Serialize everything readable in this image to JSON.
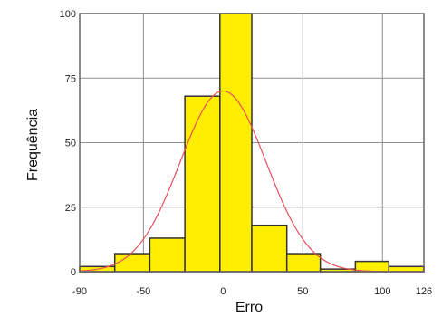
{
  "chart_data": {
    "type": "bar",
    "title": "",
    "xlabel": "Erro",
    "ylabel": "Frequência",
    "xlim": [
      -90,
      126
    ],
    "ylim": [
      0,
      100
    ],
    "x_ticks": [
      -90,
      -50,
      0,
      50,
      100,
      126
    ],
    "x_tick_labels": [
      "-90",
      "-50",
      "0",
      "50",
      "100",
      "126"
    ],
    "y_ticks": [
      0,
      25,
      50,
      75,
      100
    ],
    "y_tick_labels": [
      "0",
      "25",
      "50",
      "75",
      "100"
    ],
    "grid": true,
    "legend": "none",
    "bins": [
      {
        "x0": -90,
        "x1": -68,
        "value": 2
      },
      {
        "x0": -68,
        "x1": -46,
        "value": 7
      },
      {
        "x0": -46,
        "x1": -24,
        "value": 13
      },
      {
        "x0": -24,
        "x1": -2,
        "value": 68
      },
      {
        "x0": -2,
        "x1": 18,
        "value": 100
      },
      {
        "x0": 18,
        "x1": 40,
        "value": 18
      },
      {
        "x0": 40,
        "x1": 61,
        "value": 7
      },
      {
        "x0": 61,
        "x1": 83,
        "value": 1
      },
      {
        "x0": 83,
        "x1": 104,
        "value": 4
      },
      {
        "x0": 104,
        "x1": 126,
        "value": 2
      }
    ],
    "normal_curve": {
      "mean": 0,
      "sd": 27,
      "peak": 70
    },
    "colors": {
      "bar_fill": "#ffee00",
      "bar_edge": "#333333",
      "curve": "#e8505b",
      "grid": "#909090",
      "frame": "#666666"
    }
  }
}
